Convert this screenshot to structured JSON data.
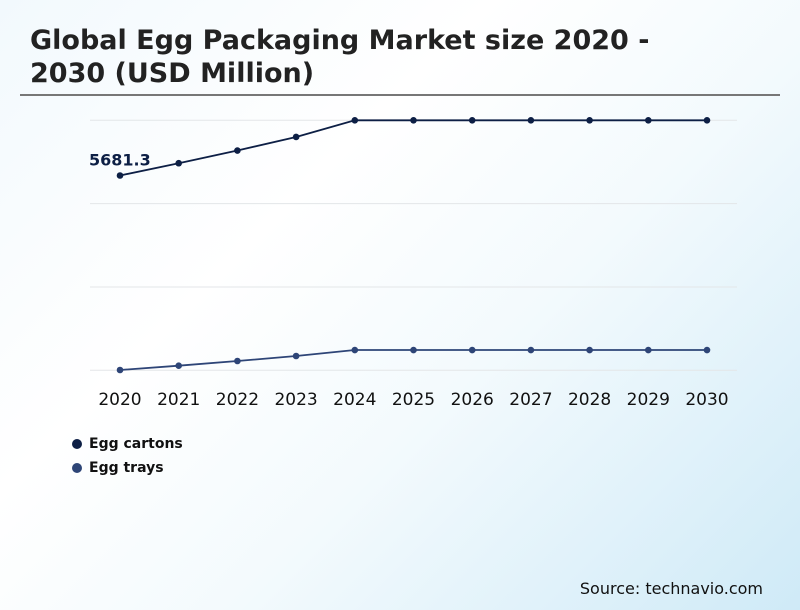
{
  "chart_data": {
    "type": "line",
    "title": "Global Egg Packaging Market size 2020 - 2030 (USD Million)",
    "x": [
      "2020",
      "2021",
      "2022",
      "2023",
      "2024",
      "2025",
      "2026",
      "2027",
      "2028",
      "2029",
      "2030"
    ],
    "ylim": [
      0,
      7291
    ],
    "grid": true,
    "legend_placement": "bottom-left",
    "series": [
      {
        "name": "Egg cartons",
        "color": "#0d1f45",
        "values": [
          5681.3,
          6039,
          6409,
          6805,
          7291,
          7291,
          7291,
          7291,
          7291,
          7291,
          7291
        ]
      },
      {
        "name": "Egg trays",
        "color": "#2e4577",
        "values": [
          9,
          134,
          271,
          417,
          591,
          591,
          591,
          591,
          591,
          591,
          591
        ]
      }
    ],
    "annotations": [
      {
        "series": 0,
        "x": "2020",
        "text": "5681.3"
      }
    ]
  },
  "source": "Source: technavio.com"
}
